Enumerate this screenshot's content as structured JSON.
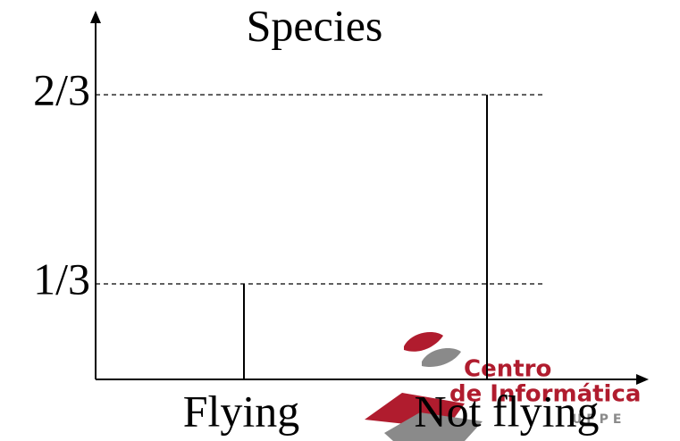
{
  "chart_data": {
    "type": "stick",
    "ylabel": "Species",
    "categories": [
      "Flying",
      "Not flying"
    ],
    "values": [
      0.3333,
      0.6667
    ],
    "color": "#000000",
    "ylim": [
      0.165,
      0.81
    ],
    "yticks": [
      {
        "value": 0.3333,
        "label": "1/3"
      },
      {
        "value": 0.6667,
        "label": "2/3"
      }
    ],
    "grid": true
  },
  "logo": {
    "line1": "Centro",
    "line2": "de Informática",
    "line3": "U F P E"
  }
}
